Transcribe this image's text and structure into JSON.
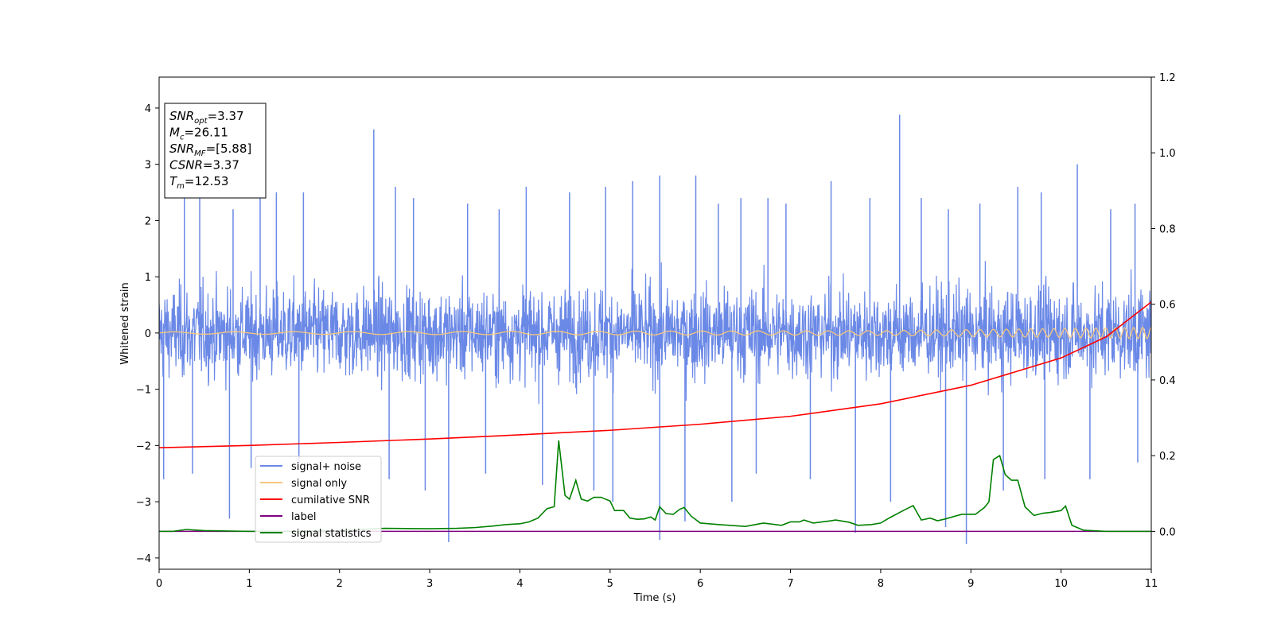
{
  "chart_data": {
    "type": "line",
    "xlabel": "Time (s)",
    "ylabel_left": "Whitened strain",
    "ylabel_right": "",
    "xlim": [
      0,
      11
    ],
    "ylim_left": [
      -4.2,
      4.55
    ],
    "ylim_right": [
      -0.1,
      1.2
    ],
    "x_ticks": [
      0,
      1,
      2,
      3,
      4,
      5,
      6,
      7,
      8,
      9,
      10,
      11
    ],
    "y_ticks_left": [
      4,
      3,
      2,
      1,
      0,
      -1,
      -2,
      -3,
      -4
    ],
    "y_ticks_right": [
      1.2,
      1.0,
      0.8,
      0.6,
      0.4,
      0.2,
      0.0
    ],
    "grid": false,
    "legend_position": "lower-left",
    "info_box": [
      {
        "main": "SNR",
        "sub": "opt",
        "rest": "=3.37"
      },
      {
        "main": "M",
        "sub": "c",
        "rest": "=26.11"
      },
      {
        "main": "SNR",
        "sub": "MF",
        "rest": "=[5.88]"
      },
      {
        "main": "CSNR",
        "sub": "",
        "rest": "=3.37"
      },
      {
        "main": "T",
        "sub": "m",
        "rest": "=12.53"
      }
    ],
    "series": [
      {
        "name": "signal+ noise",
        "axis": "left",
        "color": "#6a88e6",
        "description": "dense noise trace, mostly within about ±1.8, peaks near 3.9 at t≈8.2 and -3.75 at t≈8.95",
        "envelope_upper": [
          [
            0.0,
            1.85
          ],
          [
            0.5,
            2.3
          ],
          [
            1.0,
            2.0
          ],
          [
            1.5,
            2.1
          ],
          [
            2.0,
            2.4
          ],
          [
            2.38,
            3.62
          ],
          [
            3.0,
            2.3
          ],
          [
            3.5,
            2.0
          ],
          [
            4.0,
            2.4
          ],
          [
            4.5,
            2.0
          ],
          [
            5.0,
            2.5
          ],
          [
            5.5,
            2.8
          ],
          [
            6.0,
            2.4
          ],
          [
            6.5,
            2.4
          ],
          [
            7.0,
            2.3
          ],
          [
            7.5,
            2.6
          ],
          [
            8.0,
            2.9
          ],
          [
            8.21,
            3.88
          ],
          [
            8.5,
            2.5
          ],
          [
            9.0,
            2.4
          ],
          [
            9.5,
            2.6
          ],
          [
            10.0,
            2.3
          ],
          [
            10.5,
            2.4
          ],
          [
            11.0,
            2.5
          ]
        ],
        "envelope_lower": [
          [
            0.0,
            -2.7
          ],
          [
            0.5,
            -2.3
          ],
          [
            0.78,
            -3.3
          ],
          [
            1.0,
            -2.4
          ],
          [
            1.5,
            -2.3
          ],
          [
            2.0,
            -2.4
          ],
          [
            2.5,
            -2.6
          ],
          [
            3.0,
            -2.9
          ],
          [
            3.21,
            -3.72
          ],
          [
            3.5,
            -2.6
          ],
          [
            4.0,
            -2.4
          ],
          [
            4.5,
            -2.7
          ],
          [
            5.0,
            -2.9
          ],
          [
            5.55,
            -3.68
          ],
          [
            6.0,
            -2.5
          ],
          [
            6.5,
            -2.7
          ],
          [
            7.0,
            -2.6
          ],
          [
            7.5,
            -2.9
          ],
          [
            7.72,
            -3.55
          ],
          [
            8.0,
            -3.0
          ],
          [
            8.5,
            -3.1
          ],
          [
            8.95,
            -3.75
          ],
          [
            9.5,
            -2.7
          ],
          [
            10.0,
            -2.5
          ],
          [
            10.5,
            -2.6
          ],
          [
            11.0,
            -2.3
          ]
        ],
        "spikes": [
          [
            0.28,
            2.6
          ],
          [
            0.45,
            2.7
          ],
          [
            0.82,
            2.2
          ],
          [
            1.12,
            2.7
          ],
          [
            1.3,
            2.5
          ],
          [
            1.6,
            2.5
          ],
          [
            2.38,
            3.62
          ],
          [
            2.62,
            2.6
          ],
          [
            2.82,
            2.4
          ],
          [
            3.42,
            2.3
          ],
          [
            3.77,
            2.2
          ],
          [
            4.07,
            2.6
          ],
          [
            4.55,
            2.5
          ],
          [
            4.95,
            2.6
          ],
          [
            5.25,
            2.7
          ],
          [
            5.55,
            2.8
          ],
          [
            5.95,
            2.8
          ],
          [
            6.2,
            2.3
          ],
          [
            6.45,
            2.4
          ],
          [
            6.75,
            2.4
          ],
          [
            6.95,
            2.3
          ],
          [
            7.45,
            2.7
          ],
          [
            7.88,
            2.4
          ],
          [
            8.21,
            3.88
          ],
          [
            8.45,
            2.4
          ],
          [
            8.75,
            2.2
          ],
          [
            9.1,
            2.3
          ],
          [
            9.52,
            2.6
          ],
          [
            9.78,
            2.5
          ],
          [
            10.18,
            3.0
          ],
          [
            10.55,
            2.2
          ],
          [
            10.82,
            2.3
          ],
          [
            0.05,
            -2.6
          ],
          [
            0.37,
            -2.5
          ],
          [
            0.78,
            -3.3
          ],
          [
            1.02,
            -2.4
          ],
          [
            1.55,
            -2.3
          ],
          [
            2.55,
            -2.6
          ],
          [
            2.95,
            -2.8
          ],
          [
            3.21,
            -3.72
          ],
          [
            3.62,
            -2.5
          ],
          [
            4.25,
            -2.7
          ],
          [
            4.82,
            -2.8
          ],
          [
            5.03,
            -3.0
          ],
          [
            5.55,
            -3.68
          ],
          [
            5.83,
            -3.35
          ],
          [
            6.35,
            -3.0
          ],
          [
            6.62,
            -2.5
          ],
          [
            7.22,
            -2.6
          ],
          [
            7.72,
            -3.55
          ],
          [
            8.11,
            -3.0
          ],
          [
            8.72,
            -3.45
          ],
          [
            8.95,
            -3.75
          ],
          [
            9.36,
            -2.8
          ],
          [
            9.82,
            -2.6
          ],
          [
            10.32,
            -2.6
          ],
          [
            10.85,
            -2.3
          ]
        ]
      },
      {
        "name": "signal only",
        "axis": "left",
        "color": "#f5c77e",
        "description": "chirp oscillation around 0 growing in frequency and amplitude toward 11 s",
        "amplitude": [
          [
            0,
            0.02
          ],
          [
            8,
            0.04
          ],
          [
            10,
            0.08
          ],
          [
            11,
            0.1
          ]
        ]
      },
      {
        "name": "cumilative SNR",
        "axis": "right",
        "color": "#ff0000",
        "points": [
          [
            0,
            0.221
          ],
          [
            1,
            0.227
          ],
          [
            2,
            0.235
          ],
          [
            3,
            0.244
          ],
          [
            4,
            0.255
          ],
          [
            5,
            0.267
          ],
          [
            6,
            0.283
          ],
          [
            7,
            0.304
          ],
          [
            8,
            0.337
          ],
          [
            9,
            0.386
          ],
          [
            10,
            0.458
          ],
          [
            10.5,
            0.514
          ],
          [
            11,
            0.606
          ]
        ]
      },
      {
        "name": "label",
        "axis": "right",
        "color": "#800080",
        "points": [
          [
            0,
            0.0
          ],
          [
            11,
            0.0
          ]
        ]
      },
      {
        "name": "signal statistics",
        "axis": "right",
        "color": "#008000",
        "points": [
          [
            0,
            0.0
          ],
          [
            0.15,
            0.0
          ],
          [
            0.3,
            0.005
          ],
          [
            0.5,
            0.002
          ],
          [
            1.0,
            0.0
          ],
          [
            1.5,
            0.0
          ],
          [
            2.0,
            0.002
          ],
          [
            2.5,
            0.008
          ],
          [
            3.0,
            0.007
          ],
          [
            3.3,
            0.008
          ],
          [
            3.5,
            0.01
          ],
          [
            3.7,
            0.014
          ],
          [
            3.85,
            0.018
          ],
          [
            4.0,
            0.02
          ],
          [
            4.1,
            0.025
          ],
          [
            4.2,
            0.035
          ],
          [
            4.3,
            0.06
          ],
          [
            4.38,
            0.065
          ],
          [
            4.43,
            0.24
          ],
          [
            4.5,
            0.095
          ],
          [
            4.55,
            0.085
          ],
          [
            4.62,
            0.135
          ],
          [
            4.68,
            0.085
          ],
          [
            4.75,
            0.08
          ],
          [
            4.82,
            0.09
          ],
          [
            4.9,
            0.09
          ],
          [
            5.0,
            0.08
          ],
          [
            5.05,
            0.055
          ],
          [
            5.15,
            0.055
          ],
          [
            5.22,
            0.035
          ],
          [
            5.3,
            0.032
          ],
          [
            5.38,
            0.033
          ],
          [
            5.45,
            0.038
          ],
          [
            5.5,
            0.03
          ],
          [
            5.55,
            0.065
          ],
          [
            5.62,
            0.047
          ],
          [
            5.7,
            0.045
          ],
          [
            5.77,
            0.058
          ],
          [
            5.82,
            0.063
          ],
          [
            5.9,
            0.04
          ],
          [
            6.0,
            0.022
          ],
          [
            6.2,
            0.018
          ],
          [
            6.5,
            0.013
          ],
          [
            6.7,
            0.022
          ],
          [
            6.9,
            0.016
          ],
          [
            7.0,
            0.025
          ],
          [
            7.1,
            0.025
          ],
          [
            7.15,
            0.03
          ],
          [
            7.25,
            0.022
          ],
          [
            7.45,
            0.028
          ],
          [
            7.5,
            0.03
          ],
          [
            7.65,
            0.024
          ],
          [
            7.75,
            0.016
          ],
          [
            7.9,
            0.018
          ],
          [
            8.0,
            0.022
          ],
          [
            8.1,
            0.036
          ],
          [
            8.25,
            0.055
          ],
          [
            8.36,
            0.068
          ],
          [
            8.45,
            0.03
          ],
          [
            8.55,
            0.035
          ],
          [
            8.63,
            0.028
          ],
          [
            8.72,
            0.033
          ],
          [
            8.82,
            0.04
          ],
          [
            8.9,
            0.045
          ],
          [
            9.05,
            0.045
          ],
          [
            9.15,
            0.063
          ],
          [
            9.2,
            0.078
          ],
          [
            9.25,
            0.19
          ],
          [
            9.32,
            0.2
          ],
          [
            9.38,
            0.15
          ],
          [
            9.45,
            0.135
          ],
          [
            9.52,
            0.135
          ],
          [
            9.6,
            0.065
          ],
          [
            9.7,
            0.042
          ],
          [
            9.8,
            0.048
          ],
          [
            9.88,
            0.05
          ],
          [
            10.0,
            0.055
          ],
          [
            10.05,
            0.067
          ],
          [
            10.12,
            0.016
          ],
          [
            10.25,
            0.003
          ],
          [
            10.5,
            0.0
          ],
          [
            11.0,
            0.0
          ]
        ]
      }
    ]
  }
}
